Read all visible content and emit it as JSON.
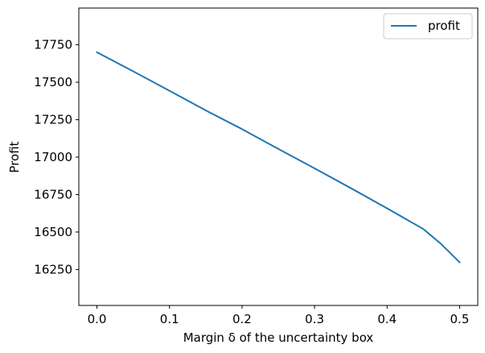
{
  "chart_data": {
    "type": "line",
    "xlabel": "Margin δ of the uncertainty box",
    "ylabel": "Profit",
    "xlim": [
      -0.025,
      0.525
    ],
    "ylim": [
      16010,
      17995
    ],
    "x_ticks": [
      0.0,
      0.1,
      0.2,
      0.3,
      0.4,
      0.5
    ],
    "x_tick_labels": [
      "0.0",
      "0.1",
      "0.2",
      "0.3",
      "0.4",
      "0.5"
    ],
    "y_ticks": [
      16250,
      16500,
      16750,
      17000,
      17250,
      17500,
      17750
    ],
    "y_tick_labels": [
      "16250",
      "16500",
      "16750",
      "17000",
      "17250",
      "17500",
      "17750"
    ],
    "grid": false,
    "legend": {
      "placement": "top-right"
    },
    "series": [
      {
        "name": "profit",
        "color": "#1f77b4",
        "x": [
          0.0,
          0.05,
          0.1,
          0.15,
          0.2,
          0.25,
          0.3,
          0.35,
          0.4,
          0.45,
          0.475,
          0.5
        ],
        "y": [
          17700,
          17573,
          17443,
          17312,
          17187,
          17055,
          16925,
          16793,
          16658,
          16520,
          16418,
          16298
        ]
      }
    ]
  }
}
